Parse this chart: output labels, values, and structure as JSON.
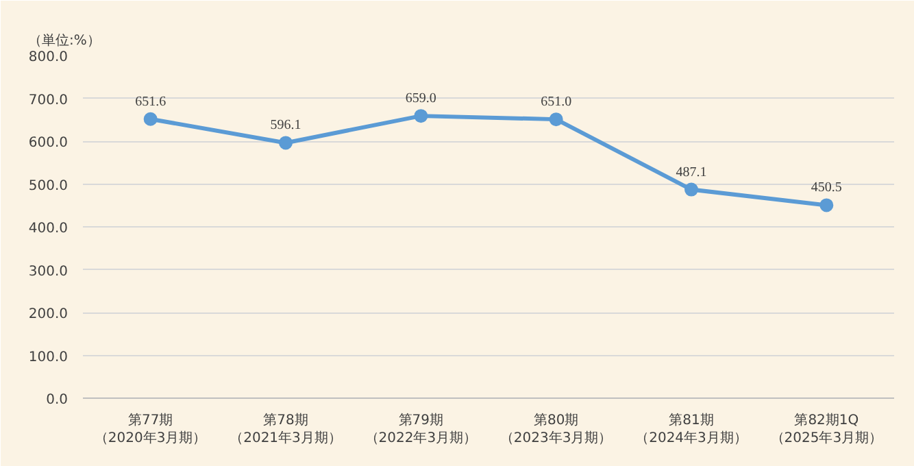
{
  "chart_data": {
    "type": "line",
    "categories": [
      "第77期（2020年3月期）",
      "第78期（2021年3月期）",
      "第79期（2022年3月期）",
      "第80期（2023年3月期）",
      "第81期（2024年3月期）",
      "第82期1Q（2025年3月期）"
    ],
    "series": [
      {
        "color": "#5b9bd5",
        "values": [
          651.6,
          596.1,
          659.0,
          651.0,
          487.1,
          450.5
        ],
        "value_labels": [
          "651.6",
          "596.1",
          "659.0",
          "651.0",
          "487.1",
          "450.5"
        ]
      }
    ],
    "ylim": [
      0,
      800
    ],
    "yticks": [
      {
        "value": 0,
        "label": "0.0"
      },
      {
        "value": 100,
        "label": "100.0"
      },
      {
        "value": 200,
        "label": "200.0"
      },
      {
        "value": 300,
        "label": "300.0"
      },
      {
        "value": 400,
        "label": "400.0"
      },
      {
        "value": 500,
        "label": "500.0"
      },
      {
        "value": 600,
        "label": "600.0"
      },
      {
        "value": 700,
        "label": "700.0"
      },
      {
        "value": 800,
        "label": "800.0"
      }
    ],
    "annotations": [
      "（単位:%）"
    ],
    "grid": "y",
    "marker": "circle",
    "line_style": "solid"
  }
}
